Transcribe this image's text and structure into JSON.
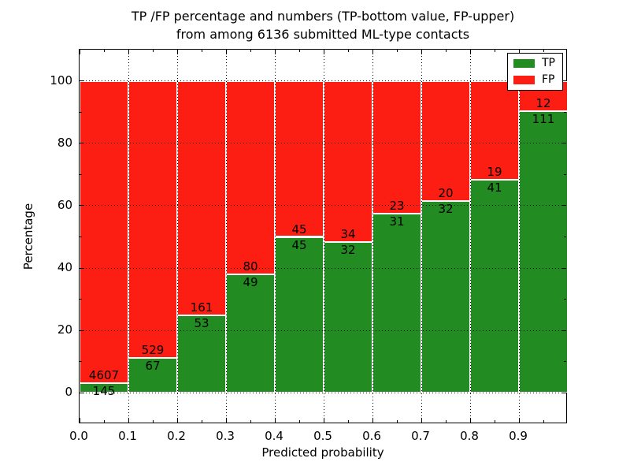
{
  "chart_data": {
    "type": "bar",
    "stacked": true,
    "orientation": "vertical",
    "title": "TP /FP percentage and numbers (TP-bottom value, FP-upper)\nfrom among 6136 submitted ML-type contacts",
    "xlabel": "Predicted probability",
    "ylabel": "Percentage",
    "total_contacts": 6136,
    "xlim": [
      0.0,
      1.0
    ],
    "ylim": [
      -10,
      110
    ],
    "bin_width": 0.1,
    "x_tick_values": [
      0.0,
      0.1,
      0.2,
      0.3,
      0.4,
      0.5,
      0.6,
      0.7,
      0.8,
      0.9
    ],
    "x_tick_labels": [
      "0.0",
      "0.1",
      "0.2",
      "0.3",
      "0.4",
      "0.5",
      "0.6",
      "0.7",
      "0.8",
      "0.9"
    ],
    "x_minor_tick_values": [
      0.05,
      0.15,
      0.25,
      0.35,
      0.45,
      0.55,
      0.65,
      0.75,
      0.85,
      0.95
    ],
    "y_tick_values": [
      0,
      20,
      40,
      60,
      80,
      100
    ],
    "y_tick_labels": [
      "0",
      "20",
      "40",
      "60",
      "80",
      "100"
    ],
    "y_minor_tick_values": [
      10,
      30,
      50,
      70,
      90
    ],
    "grid": {
      "style": "dotted",
      "color": "#000000",
      "on": true
    },
    "colors": {
      "tp": "#228b22",
      "fp": "#fc1d13"
    },
    "legend": {
      "position": "upper-right",
      "entries": [
        {
          "label": "TP",
          "color": "#228b22"
        },
        {
          "label": "FP",
          "color": "#fc1d13"
        }
      ]
    },
    "categories": [
      "0.0-0.1",
      "0.1-0.2",
      "0.2-0.3",
      "0.3-0.4",
      "0.4-0.5",
      "0.5-0.6",
      "0.6-0.7",
      "0.7-0.8",
      "0.8-0.9",
      "0.9-1.0"
    ],
    "series": [
      {
        "name": "TP",
        "counts": [
          145,
          67,
          53,
          49,
          45,
          32,
          31,
          32,
          41,
          111
        ],
        "percentages": [
          3.05,
          11.24,
          24.77,
          37.98,
          50.0,
          48.48,
          57.41,
          61.54,
          68.33,
          90.24
        ]
      },
      {
        "name": "FP",
        "counts": [
          4607,
          529,
          161,
          80,
          45,
          34,
          23,
          20,
          19,
          12
        ],
        "percentages": [
          96.95,
          88.76,
          75.23,
          62.02,
          50.0,
          51.52,
          42.59,
          38.46,
          31.67,
          9.76
        ]
      }
    ]
  }
}
